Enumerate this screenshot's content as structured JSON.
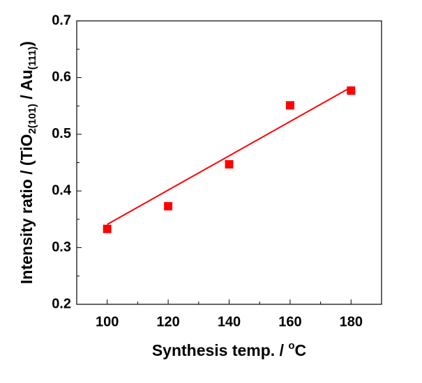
{
  "chart_data": {
    "type": "scatter",
    "xlabel": [
      {
        "text": "Synthesis temp. / "
      },
      {
        "text": "o",
        "sup": true
      },
      {
        "text": "C"
      }
    ],
    "ylabel": [
      {
        "text": "Intensity ratio / (TiO"
      },
      {
        "text": "2(101)",
        "sub": true
      },
      {
        "text": " / Au"
      },
      {
        "text": "(111)",
        "sub": true
      },
      {
        "text": ")"
      }
    ],
    "x": [
      100,
      120,
      140,
      160,
      180
    ],
    "values": [
      0.333,
      0.373,
      0.447,
      0.551,
      0.577
    ],
    "color": "#ff0000",
    "fit": {
      "x": [
        100,
        180
      ],
      "values": [
        0.341,
        0.583
      ],
      "color": "#ff0000"
    },
    "xlim": [
      90,
      190
    ],
    "ylim": [
      0.2,
      0.7
    ],
    "xticks": [
      100,
      120,
      140,
      160,
      180
    ],
    "yticks": [
      {
        "value": 0.2,
        "label": "0.2"
      },
      {
        "value": 0.3,
        "label": "0.3"
      },
      {
        "value": 0.4,
        "label": "0.4"
      },
      {
        "value": 0.5,
        "label": "0.5"
      },
      {
        "value": 0.6,
        "label": "0.6"
      },
      {
        "value": 0.7,
        "label": "0.7"
      }
    ],
    "xminorticks": [
      110,
      130,
      150,
      170
    ],
    "yminorticks": [
      0.25,
      0.35,
      0.45,
      0.55,
      0.65
    ],
    "grid": false
  }
}
